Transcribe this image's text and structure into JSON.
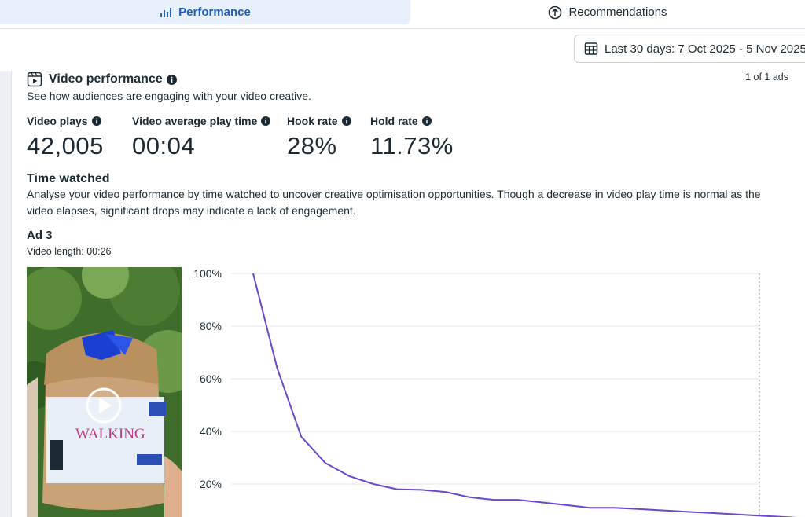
{
  "tabs": [
    {
      "label": "Performance",
      "icon": "bar-chart-icon",
      "active": true
    },
    {
      "label": "Recommendations",
      "icon": "arrow-up-circle-icon",
      "active": false
    }
  ],
  "date_range": {
    "label": "Last 30 days: 7 Oct 2025 - 5 Nov 2025",
    "icon": "calendar-icon"
  },
  "ads_count": "1 of 1 ads",
  "video_performance": {
    "title": "Video performance",
    "icon": "video-icon",
    "subtitle": "See how audiences are engaging with your video creative."
  },
  "metrics": [
    {
      "label": "Video plays",
      "value": "42,005"
    },
    {
      "label": "Video average play time",
      "value": "00:04"
    },
    {
      "label": "Hook rate",
      "value": "28%"
    },
    {
      "label": "Hold rate",
      "value": "11.73%"
    }
  ],
  "time_watched": {
    "title": "Time watched",
    "description": "Analyse your video performance by time watched to uncover creative optimisation opportunities. Though a decrease in video play time is normal as the video elapses, significant drops may indicate a lack of engagement."
  },
  "ad": {
    "name": "Ad 3",
    "video_length": "Video length: 00:26",
    "thumbnail_brand_text": "WALKING",
    "play_icon": "play-icon"
  },
  "colors": {
    "accent": "#1d5fbf",
    "line": "#6a48c9",
    "tab_active_bg": "#e7f0fb"
  },
  "chart_data": {
    "type": "line",
    "title": "",
    "xlabel": "",
    "ylabel": "",
    "ylim": [
      0,
      100
    ],
    "yticks": [
      "100%",
      "80%",
      "60%",
      "40%",
      "20%"
    ],
    "xlim": [
      0,
      26
    ],
    "grid": true,
    "series": [
      {
        "x": [
          0,
          1,
          2,
          3,
          4,
          5,
          6,
          7,
          8,
          9,
          10,
          11,
          12,
          13,
          14,
          15,
          16,
          17,
          18,
          19,
          20,
          21,
          22,
          23
        ],
        "y": [
          100,
          64,
          38,
          28,
          23,
          20,
          18,
          17.8,
          17,
          15,
          14,
          14,
          13,
          12,
          11,
          11,
          10.5,
          10,
          9.5,
          9,
          8.5,
          8,
          7.5,
          7
        ]
      }
    ]
  }
}
